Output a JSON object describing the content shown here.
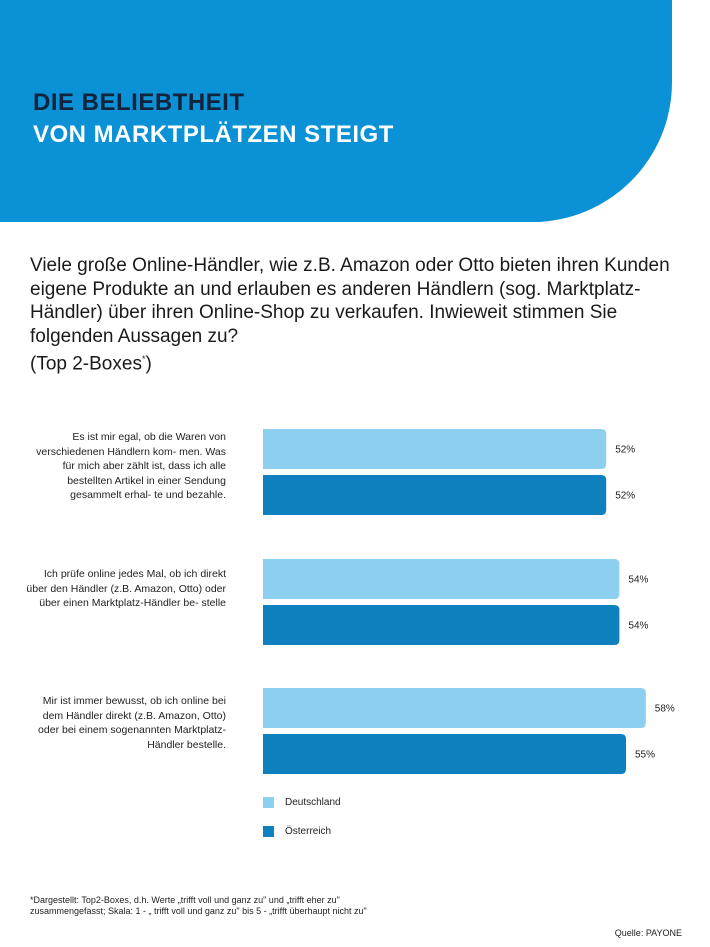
{
  "header": {
    "line1": "DIE BELIEBTHEIT",
    "line2": "VON MARKTPLÄTZEN STEIGT"
  },
  "question": {
    "text": "Viele große Online-Händler, wie z.B. Amazon oder Otto bieten ihren Kunden eigene Produkte an und erlauben es anderen Händlern (sog. Marktplatz-Händler) über ihren Online-Shop zu verkaufen. Inwieweit stimmen Sie folgenden Aussagen zu?",
    "suffix": "(Top 2-Boxes",
    "footnote_mark": "*",
    "suffix_end": ")"
  },
  "chart_data": {
    "type": "bar",
    "orientation": "horizontal",
    "categories": [
      "Es ist mir egal, ob die Waren von verschiedenen Händlern kom- men. Was für mich aber zählt ist, dass ich alle bestellten Artikel in einer Sendung gesammelt erhal- te und bezahle.",
      "Ich prüfe online jedes Mal, ob ich direkt über den Händler (z.B. Amazon, Otto) oder über einen Marktplatz-Händler be- stelle",
      "Mir ist immer bewusst, ob ich online bei dem Händler direkt (z.B. Amazon, Otto) oder bei einem sogenannten Marktplatz-Händler bestelle."
    ],
    "series": [
      {
        "name": "Deutschland",
        "values": [
          52,
          54,
          58
        ],
        "labels": [
          "52%",
          "54%",
          "58%"
        ],
        "color": "#8ccfee"
      },
      {
        "name": "Österreich",
        "values": [
          52,
          54,
          55
        ],
        "labels": [
          "52%",
          "54%",
          "55%"
        ],
        "color": "#0e80bd"
      }
    ],
    "xlim": [
      0,
      100
    ],
    "legend": "bottom-left"
  },
  "footnote": {
    "line1": "*Dargestellt: Top2-Boxes, d.h. Werte „trifft voll und ganz zu\" und „trifft eher zu\"",
    "line2": " zusammengefasst; Skala: 1 - „ trifft voll und ganz zu\" bis 5 - „trifft überhaupt nicht zu\""
  },
  "source": "Quelle: PAYONE",
  "colors": {
    "banner": "#0a91d6",
    "title_dark": "#12243c"
  }
}
